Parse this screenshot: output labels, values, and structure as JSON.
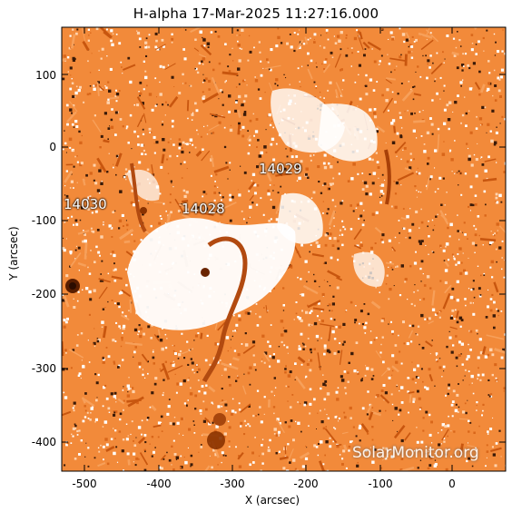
{
  "title": "H-alpha 17-Mar-2025 11:27:16.000",
  "xlabel": "X (arcsec)",
  "ylabel": "Y (arcsec)",
  "xticks": [
    "-500",
    "-400",
    "-300",
    "-200",
    "-100",
    "0"
  ],
  "yticks": [
    "100",
    "0",
    "-100",
    "-200",
    "-300",
    "-400"
  ],
  "regions": [
    "14030",
    "14028",
    "14029"
  ],
  "watermark": "SolarMonitor.org",
  "colors": {
    "base": "#f28a3a",
    "dark": "#7a2e00",
    "bright": "#ffffff",
    "mid": "#e06a1a"
  }
}
